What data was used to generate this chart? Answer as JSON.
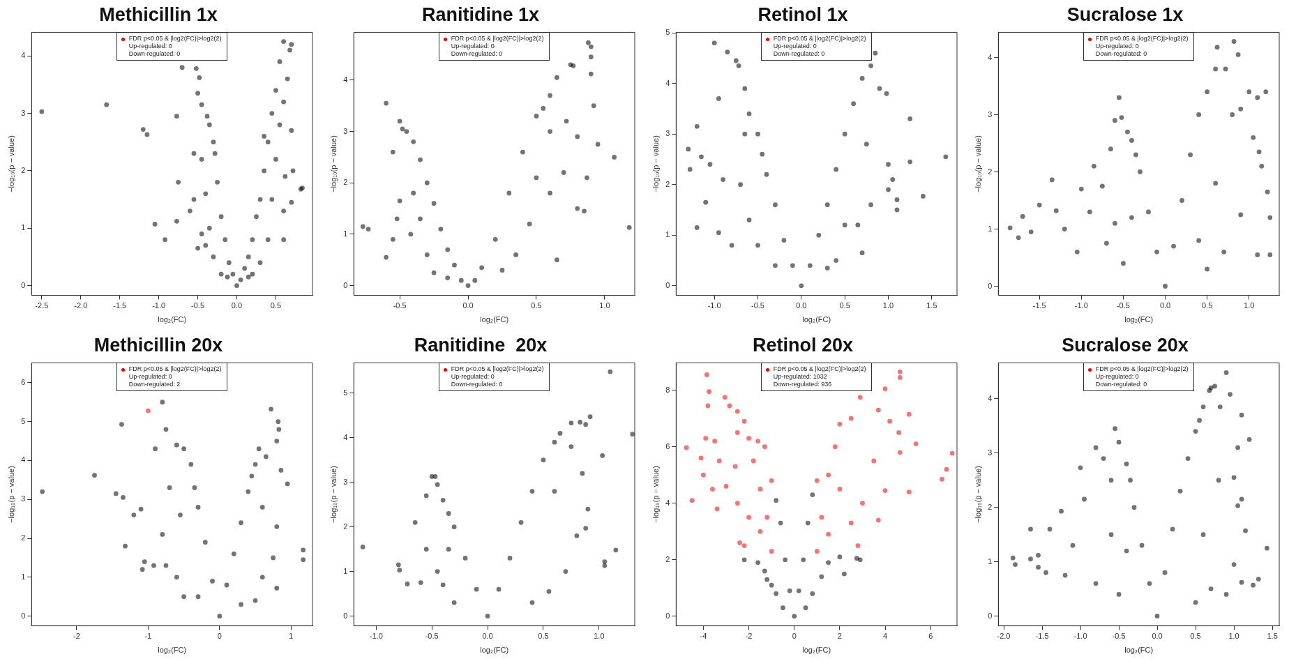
{
  "chart_data": [
    {
      "type": "scatter",
      "title": "Methicillin 1x",
      "xlabel": "log₂(FC)",
      "ylabel": "−log₁₀(p − value)",
      "xlim": [
        -2.63,
        0.97
      ],
      "xticks": [
        -2.5,
        {
          "value": -2,
          "label": "-2.0"
        },
        -1.5,
        {
          "value": -1,
          "label": "-1.0"
        },
        -0.5,
        {
          "value": 0,
          "label": "0.0"
        },
        0.5
      ],
      "ylim": [
        -0.17,
        4.41
      ],
      "yticks": [
        0,
        1,
        2,
        3,
        4
      ],
      "legend": "top",
      "marker": "circle",
      "annotations": [
        "Up-regulated: 0",
        "Down-regulated: 0"
      ],
      "series": [
        {
          "color": "#000000",
          "x": [
            -2.5,
            -1.67,
            -1.2,
            -1.15,
            -1.05,
            -0.92,
            -0.77,
            -0.77,
            -0.75,
            -0.7,
            -0.52,
            -0.48,
            -0.5,
            -0.45,
            -0.6,
            -0.55,
            -0.38,
            -0.35,
            -0.3,
            0.84,
            0.82,
            0.7,
            0.68,
            0.6,
            0.65,
            0.7,
            0.72,
            0.7,
            0.55,
            0.5,
            0.45,
            0.4,
            0.35,
            0.3,
            0.2,
            0.1,
            0,
            -0.1,
            -0.2,
            -0.25,
            -0.28,
            -0.15,
            -0.05,
            0.05,
            0.15,
            0.25,
            0.35,
            0.5,
            0.45,
            0.4,
            0.3,
            0.2,
            -0.2,
            -0.3,
            -0.35,
            -0.4,
            -0.45,
            -0.4,
            0.6,
            0.6,
            0.55,
            0.6,
            0.62,
            -0.5,
            -0.55,
            -0.45,
            0.15,
            -0.12
          ],
          "values": [
            3.03,
            3.15,
            2.72,
            2.63,
            1.07,
            0.8,
            2.95,
            1.12,
            1.8,
            3.8,
            3.78,
            3.62,
            3.35,
            3.15,
            1.3,
            2.3,
            2.95,
            2.8,
            2.5,
            1.7,
            1.68,
            4.2,
            4.1,
            4.25,
            3.6,
            2.7,
            2.0,
            1.45,
            3.9,
            3.4,
            3.0,
            2.5,
            2.0,
            1.5,
            0.8,
            0.3,
            0,
            0.4,
            1.2,
            1.8,
            2.3,
            0.8,
            0.2,
            0.1,
            0.5,
            1.2,
            2.6,
            2.2,
            1.5,
            0.8,
            0.4,
            0.2,
            0.2,
            0.5,
            1.0,
            1.6,
            2.2,
            0.7,
            1.3,
            0.8,
            2.8,
            3.2,
            1.9,
            0.65,
            1.5,
            0.9,
            0.15,
            0.15
          ]
        },
        {
          "name": "FDR p<0.05 & |log2(FC)|>log2(2)",
          "color": "#ee0000"
        }
      ]
    },
    {
      "type": "scatter",
      "title": "Ranitidine 1x",
      "xlabel": "log₂(FC)",
      "ylabel": "−log₁₀(p − value)",
      "xlim": [
        -0.836,
        1.22
      ],
      "xticks": [
        -0.5,
        {
          "value": 0,
          "label": "0.0"
        },
        0.5,
        {
          "value": 1,
          "label": "1.0"
        }
      ],
      "ylim": [
        -0.19,
        4.93
      ],
      "yticks": [
        0,
        1,
        2,
        3,
        4
      ],
      "legend": "top",
      "marker": "circle",
      "annotations": [
        "Up-regulated: 0",
        "Down-regulated: 0"
      ],
      "series": [
        {
          "color": "#000000",
          "x": [
            -0.77,
            -0.73,
            -0.6,
            -0.6,
            -0.5,
            -0.48,
            -0.45,
            -0.55,
            -0.5,
            -0.52,
            -0.4,
            -0.35,
            -0.3,
            -0.25,
            -0.2,
            -0.15,
            -0.1,
            -0.05,
            0,
            0.05,
            0.1,
            0.2,
            0.3,
            0.4,
            0.5,
            0.55,
            0.6,
            0.65,
            0.75,
            0.77,
            0.88,
            0.9,
            0.9,
            0.9,
            0.92,
            0.95,
            1.07,
            1.18,
            0.87,
            0.85,
            0.8,
            0.7,
            0.6,
            0.65,
            0.5,
            0.45,
            0.35,
            0.25,
            -0.3,
            -0.35,
            -0.4,
            -0.42,
            -0.55,
            -0.25,
            -0.15,
            0.6,
            0.8,
            0.72
          ],
          "values": [
            1.15,
            1.1,
            3.55,
            0.55,
            3.2,
            3.05,
            3.0,
            2.6,
            1.65,
            1.3,
            2.8,
            2.45,
            2.0,
            1.6,
            1.1,
            0.7,
            0.4,
            0.1,
            0,
            0.1,
            0.35,
            0.9,
            1.8,
            2.6,
            3.3,
            3.45,
            3.7,
            4.05,
            4.3,
            4.28,
            4.73,
            4.65,
            4.45,
            4.12,
            3.5,
            2.75,
            2.5,
            1.13,
            2.1,
            1.45,
            1.5,
            2.2,
            1.8,
            0.5,
            2.1,
            1.2,
            0.6,
            0.3,
            0.6,
            1.3,
            1.8,
            1.0,
            0.9,
            0.25,
            0.15,
            3.0,
            2.9,
            3.2
          ]
        },
        {
          "name": "FDR p<0.05 & |log2(FC)|>log2(2)",
          "color": "#ee0000"
        }
      ]
    },
    {
      "type": "scatter",
      "title": "Retinol 1x",
      "xlabel": "log₂(FC)",
      "ylabel": "−log₁₀(p − value)",
      "xlim": [
        -1.44,
        1.79
      ],
      "xticks": [
        {
          "value": -1,
          "label": "-1.0"
        },
        -0.5,
        {
          "value": 0,
          "label": "0.0"
        },
        0.5,
        {
          "value": 1,
          "label": "1.0"
        },
        1.5
      ],
      "ylim": [
        -0.19,
        5.01
      ],
      "yticks": [
        0,
        1,
        2,
        3,
        4,
        5
      ],
      "legend": "top",
      "marker": "circle",
      "annotations": [
        "Up-regulated: 0",
        "Down-regulated: 0"
      ],
      "series": [
        {
          "color": "#000000",
          "x": [
            -1.3,
            -1.28,
            -1.2,
            -1.2,
            -1.15,
            -1.1,
            -1.05,
            -1.0,
            -0.85,
            -0.95,
            -0.9,
            -0.95,
            -0.75,
            -0.72,
            -0.65,
            -0.8,
            -0.6,
            -0.5,
            -0.45,
            -0.4,
            -0.3,
            -0.2,
            -0.1,
            0,
            0.1,
            0.2,
            0.3,
            0.4,
            0.5,
            0.6,
            0.7,
            0.8,
            0.85,
            0.9,
            0.98,
            1.0,
            1.05,
            1.0,
            1.1,
            1.1,
            1.25,
            1.25,
            1.4,
            1.66,
            0.8,
            0.65,
            0.7,
            0.5,
            0.4,
            -0.5,
            -0.6,
            -0.7,
            -0.3,
            0.3,
            -0.65,
            0.75
          ],
          "values": [
            2.7,
            2.3,
            3.15,
            1.15,
            2.55,
            1.65,
            2.4,
            4.8,
            4.62,
            3.7,
            2.1,
            1.05,
            4.45,
            4.35,
            3.9,
            0.8,
            3.4,
            3.0,
            2.6,
            2.2,
            1.6,
            0.9,
            0.4,
            0,
            0.4,
            1.0,
            1.6,
            2.3,
            3.0,
            3.6,
            4.1,
            4.35,
            4.6,
            3.9,
            3.8,
            2.4,
            2.1,
            1.9,
            1.7,
            1.5,
            3.3,
            2.45,
            1.77,
            2.55,
            1.6,
            1.2,
            0.65,
            1.2,
            0.5,
            0.8,
            1.3,
            2.0,
            0.4,
            0.35,
            3.0,
            2.8
          ]
        },
        {
          "name": "FDR p<0.05 & |log2(FC)|>log2(2)",
          "color": "#ee0000"
        }
      ]
    },
    {
      "type": "scatter",
      "title": "Sucralose 1x",
      "xlabel": "log₂(FC)",
      "ylabel": "−log₁₀(p − value)",
      "xlim": [
        -1.99,
        1.36
      ],
      "xticks": [
        -1.5,
        {
          "value": -1,
          "label": "-1.0"
        },
        -0.5,
        {
          "value": 0,
          "label": "0.0"
        },
        0.5,
        {
          "value": 1,
          "label": "1.0"
        }
      ],
      "ylim": [
        -0.16,
        4.44
      ],
      "yticks": [
        0,
        1,
        2,
        3,
        4
      ],
      "legend": "top",
      "marker": "circle",
      "annotations": [
        "Up-regulated: 0",
        "Down-regulated: 0"
      ],
      "series": [
        {
          "color": "#000000",
          "x": [
            -1.85,
            -1.75,
            -1.7,
            -1.6,
            -1.5,
            -1.35,
            -1.3,
            -1.2,
            -1.0,
            -0.9,
            -0.85,
            -0.75,
            -0.65,
            -0.6,
            -0.55,
            -0.52,
            -0.45,
            -0.4,
            -0.35,
            -0.3,
            -0.2,
            -0.1,
            0,
            0.1,
            0.2,
            0.3,
            0.4,
            0.5,
            0.6,
            0.62,
            0.82,
            0.72,
            0.87,
            0.8,
            0.9,
            1.0,
            1.05,
            1.1,
            1.12,
            1.2,
            1.22,
            1.25,
            1.15,
            1.1,
            1.25,
            0.9,
            0.7,
            0.5,
            -0.5,
            -0.7,
            -1.05,
            -0.4,
            -0.6,
            0.4,
            0.6
          ],
          "values": [
            1.02,
            0.85,
            1.22,
            0.95,
            1.42,
            1.86,
            1.32,
            1.0,
            1.7,
            1.3,
            2.1,
            1.75,
            2.4,
            2.9,
            3.3,
            2.95,
            2.7,
            2.55,
            2.3,
            2.0,
            1.3,
            0.6,
            0,
            0.7,
            1.5,
            2.3,
            3.0,
            3.4,
            3.8,
            4.18,
            4.28,
            3.8,
            4.05,
            3.0,
            3.1,
            3.4,
            2.6,
            3.3,
            2.35,
            3.4,
            1.65,
            1.2,
            2.1,
            0.55,
            0.55,
            1.25,
            0.6,
            0.3,
            0.4,
            0.75,
            0.6,
            1.2,
            1.1,
            0.8,
            1.8
          ]
        },
        {
          "name": "FDR p<0.05 & |log2(FC)|>log2(2)",
          "color": "#ee0000"
        }
      ]
    },
    {
      "type": "scatter",
      "title": "Methicillin 20x",
      "xlabel": "log₂(FC)",
      "ylabel": "−log₁₀(p − value)",
      "xlim": [
        -2.63,
        1.3
      ],
      "xticks": [
        -2,
        -1,
        0,
        1
      ],
      "ylim": [
        -0.25,
        6.51
      ],
      "yticks": [
        0,
        1,
        2,
        3,
        4,
        5,
        6
      ],
      "legend": "top",
      "marker": "circle",
      "annotations": [
        "Up-regulated: 0",
        "Down-regulated: 2"
      ],
      "series": [
        {
          "color": "#000000",
          "x": [
            -2.48,
            -1.75,
            -1.45,
            -1.37,
            -1.35,
            -1.32,
            -1.2,
            -1.1,
            -1.08,
            -1.05,
            -0.92,
            -0.8,
            -0.75,
            -0.9,
            -0.7,
            -0.6,
            -0.5,
            -0.4,
            -0.35,
            -0.3,
            -0.2,
            -0.1,
            0,
            0.1,
            0.2,
            0.3,
            0.4,
            0.45,
            0.5,
            0.55,
            0.65,
            0.72,
            0.82,
            0.83,
            0.8,
            0.86,
            0.95,
            0.8,
            0.75,
            0.8,
            1.17,
            1.17,
            0.6,
            0.5,
            -0.5,
            -0.6,
            -0.75,
            -0.8,
            -0.55,
            0.3,
            -0.3,
            0.6
          ],
          "values": [
            3.2,
            3.62,
            3.15,
            4.93,
            3.05,
            1.8,
            2.6,
            2.75,
            1.2,
            1.4,
            1.3,
            5.5,
            4.8,
            4.3,
            3.3,
            4.4,
            4.3,
            3.9,
            3.3,
            2.8,
            1.9,
            0.9,
            0,
            0.8,
            1.6,
            2.4,
            3.2,
            3.6,
            3.9,
            4.3,
            4.1,
            5.32,
            5.0,
            4.8,
            4.5,
            3.75,
            3.4,
            2.3,
            1.5,
            0.72,
            1.7,
            1.45,
            1.0,
            0.4,
            0.5,
            1.0,
            1.3,
            2.1,
            2.6,
            0.3,
            0.5,
            2.8
          ]
        },
        {
          "name": "FDR p<0.05 & |log2(FC)|>log2(2)",
          "color": "#ee0000",
          "x": [
            -1.0
          ],
          "values": [
            5.28
          ]
        }
      ]
    },
    {
      "type": "scatter",
      "title": "Ranitidine  20x",
      "xlabel": "log₂(FC)",
      "ylabel": "−log₁₀(p − value)",
      "xlim": [
        -1.2,
        1.32
      ],
      "xticks": [
        {
          "value": -1,
          "label": "-1.0"
        },
        -0.5,
        {
          "value": 0,
          "label": "0.0"
        },
        0.5,
        {
          "value": 1,
          "label": "1.0"
        }
      ],
      "ylim": [
        -0.22,
        5.68
      ],
      "yticks": [
        0,
        1,
        2,
        3,
        4,
        5
      ],
      "legend": "top",
      "marker": "circle",
      "annotations": [
        "Up-regulated: 0",
        "Down-regulated: 0"
      ],
      "series": [
        {
          "color": "#000000",
          "x": [
            -1.12,
            -0.8,
            -0.79,
            -0.72,
            -0.65,
            -0.6,
            -0.55,
            -0.5,
            -0.47,
            -0.45,
            -0.4,
            -0.35,
            -0.3,
            -0.2,
            -0.1,
            0,
            0.1,
            0.2,
            0.3,
            0.4,
            0.5,
            0.6,
            0.65,
            0.75,
            0.83,
            0.88,
            0.92,
            1.1,
            1.03,
            1.3,
            1.15,
            1.05,
            1.05,
            0.88,
            0.8,
            0.85,
            0.9,
            0.7,
            0.55,
            0.4,
            -0.3,
            -0.4,
            -0.45,
            -0.55,
            -0.35,
            0.6,
            0.75
          ],
          "values": [
            1.55,
            1.15,
            1.03,
            0.72,
            2.1,
            0.75,
            2.7,
            3.13,
            3.13,
            2.95,
            2.6,
            2.3,
            2.0,
            1.3,
            0.6,
            0,
            0.6,
            1.3,
            2.1,
            2.8,
            3.5,
            3.9,
            4.1,
            4.33,
            4.35,
            4.3,
            4.47,
            5.48,
            3.6,
            4.08,
            1.48,
            1.22,
            1.13,
            1.97,
            1.8,
            3.2,
            2.4,
            1.0,
            0.55,
            0.3,
            0.3,
            0.7,
            1.0,
            1.5,
            1.5,
            2.8,
            3.8
          ]
        },
        {
          "name": "FDR p<0.05 & |log2(FC)|>log2(2)",
          "color": "#ee0000"
        }
      ]
    },
    {
      "type": "scatter",
      "title": "Retinol 20x",
      "xlabel": "log₂(FC)",
      "ylabel": "−log₁₀(p − value)",
      "xlim": [
        -5.2,
        7.16
      ],
      "xticks": [
        -4,
        -2,
        0,
        2,
        4,
        6
      ],
      "ylim": [
        -0.34,
        8.97
      ],
      "yticks": [
        0,
        2,
        4,
        6,
        8
      ],
      "legend": "top",
      "marker": "circle",
      "annotations": [
        "Up-regulated: 1032",
        "Down-regulated: 936"
      ],
      "series": [
        {
          "color": "#000000",
          "x": [
            -2.2,
            -1.6,
            -1.3,
            -1.0,
            -0.8,
            -0.6,
            -0.4,
            -0.2,
            0,
            0.2,
            0.4,
            0.6,
            0.8,
            1.5,
            2.0,
            2.2,
            2.75,
            2.9,
            1.2,
            0.8,
            -0.8,
            0.5,
            -0.5,
            -1.2
          ],
          "values": [
            2.0,
            1.9,
            1.6,
            1.1,
            4.1,
            3.3,
            2.0,
            0.9,
            0,
            0.9,
            2.0,
            3.3,
            4.3,
            1.9,
            2.1,
            1.5,
            2.05,
            2.0,
            1.4,
            0.8,
            0.8,
            0.3,
            0.3,
            1.3
          ]
        },
        {
          "name": "FDR p<0.05 & |log2(FC)|>log2(2)",
          "color": "#ee0000",
          "x": [
            -4.75,
            -4.5,
            -4.1,
            -4.0,
            -3.9,
            -3.85,
            -3.75,
            -3.8,
            -3.6,
            -3.4,
            -3.3,
            -3.05,
            -3.0,
            -2.85,
            -2.5,
            -2.5,
            -2.4,
            -2.2,
            -2.2,
            -2,
            -1.8,
            -1.5,
            -1.2,
            -1.0,
            -1.0,
            -1.3,
            -1.6,
            -2.5,
            -2.0,
            -1.5,
            1.0,
            1.0,
            1.2,
            1.5,
            1.8,
            2.0,
            2.5,
            2.9,
            3.7,
            4.0,
            4.65,
            4.65,
            4.2,
            4.6,
            4.65,
            5.05,
            5.05,
            5.35,
            6.5,
            6.7,
            6.95,
            4.0,
            3.7,
            3.0,
            2.8,
            2.5,
            1.5,
            2.0,
            3.5,
            -2.6,
            -3.5
          ],
          "values": [
            5.97,
            4.1,
            5.6,
            5.0,
            6.3,
            8.55,
            7.95,
            7.45,
            4.5,
            3.8,
            5.5,
            7.75,
            4.6,
            7.45,
            7.25,
            6.5,
            2.6,
            2.5,
            6.9,
            6.3,
            5.5,
            4.5,
            3.5,
            2.3,
            4.8,
            6.0,
            6.2,
            4.0,
            3.5,
            3.0,
            2.3,
            4.8,
            3.5,
            5.0,
            6.0,
            6.8,
            7.0,
            7.75,
            7.3,
            8.05,
            8.65,
            8.45,
            6.9,
            6.5,
            5.8,
            7.15,
            4.4,
            6.1,
            4.85,
            5.2,
            5.77,
            4.45,
            3.4,
            4.0,
            2.5,
            3.3,
            2.9,
            4.5,
            5.5,
            5.3,
            6.2
          ]
        }
      ]
    },
    {
      "type": "scatter",
      "title": "Sucralose 20x",
      "xlabel": "log₂(FC)",
      "ylabel": "−log₁₀(p − value)",
      "xlim": [
        -2.07,
        1.59
      ],
      "xticks": [
        {
          "value": -2,
          "label": "-2.0"
        },
        -1.5,
        {
          "value": -1,
          "label": "-1.0"
        },
        -0.5,
        {
          "value": 0,
          "label": "0.0"
        },
        0.5,
        {
          "value": 1,
          "label": "1.0"
        },
        1.5
      ],
      "ylim": [
        -0.18,
        4.66
      ],
      "yticks": [
        0,
        1,
        2,
        3,
        4
      ],
      "legend": "top",
      "marker": "circle",
      "annotations": [
        "Up-regulated: 0",
        "Down-regulated: 0"
      ],
      "series": [
        {
          "color": "#000000",
          "x": [
            -1.88,
            -1.85,
            -1.65,
            -1.65,
            -1.55,
            -1.55,
            -1.45,
            -1.4,
            -1.25,
            -1.1,
            -1.0,
            -0.95,
            -0.8,
            -0.7,
            -0.6,
            -0.55,
            -0.5,
            -0.4,
            -0.35,
            -0.3,
            -0.2,
            -0.1,
            0,
            0.1,
            0.2,
            0.3,
            0.4,
            0.5,
            0.55,
            0.6,
            0.68,
            0.7,
            0.75,
            0.82,
            0.9,
            0.95,
            1.1,
            1.2,
            1.05,
            1.0,
            1.05,
            1.15,
            1.1,
            1.43,
            1.32,
            1.25,
            1.1,
            1.0,
            0.9,
            0.7,
            0.5,
            -0.5,
            -0.8,
            -1.2,
            -0.6,
            -0.4,
            0.6,
            0.8
          ],
          "values": [
            1.07,
            0.95,
            1.6,
            1.05,
            1.12,
            0.9,
            0.8,
            1.6,
            1.93,
            1.3,
            2.73,
            2.15,
            3.1,
            2.9,
            2.5,
            3.45,
            3.2,
            2.8,
            2.5,
            2.0,
            1.3,
            0.6,
            0,
            0.8,
            1.6,
            2.3,
            2.9,
            3.4,
            3.6,
            3.85,
            4.15,
            4.2,
            4.23,
            3.85,
            4.48,
            4.08,
            3.7,
            3.25,
            3.1,
            2.55,
            2.03,
            1.57,
            2.15,
            1.25,
            0.68,
            0.57,
            0.62,
            0.95,
            0.4,
            0.5,
            0.25,
            0.4,
            0.6,
            0.75,
            1.5,
            1.2,
            1.5,
            2.5
          ]
        },
        {
          "name": "FDR p<0.05 & |log2(FC)|>log2(2)",
          "color": "#ee0000"
        }
      ]
    }
  ]
}
